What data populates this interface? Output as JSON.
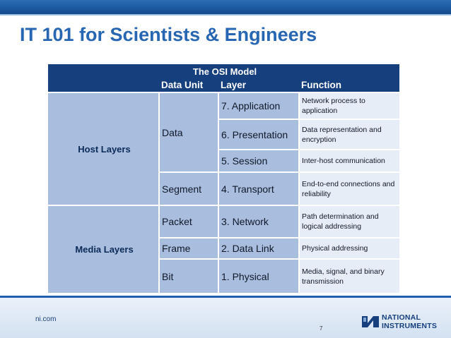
{
  "slide": {
    "title": "IT 101 for Scientists & Engineers",
    "footer_site": "ni.com",
    "page_number": "7",
    "logo_line1": "NATIONAL",
    "logo_line2": "INSTRUMENTS",
    "colors": {
      "title": "#2766b3",
      "header": "#163f7e",
      "cell": "#a9bedf",
      "func_cell": "#e7edf7"
    }
  },
  "table": {
    "title": "The OSI Model",
    "headers": {
      "unit": "Data Unit",
      "layer": "Layer",
      "function": "Function"
    },
    "groups": {
      "host": "Host Layers",
      "media": "Media Layers"
    },
    "units": {
      "data": "Data",
      "segment": "Segment",
      "packet": "Packet",
      "frame": "Frame",
      "bit": "Bit"
    },
    "rows": [
      {
        "layer": "7. Application",
        "function": "Network process to application"
      },
      {
        "layer": "6. Presentation",
        "function": "Data representation and encryption"
      },
      {
        "layer": "5. Session",
        "function": "Inter-host communication"
      },
      {
        "layer": "4. Transport",
        "function": "End-to-end connections and reliability"
      },
      {
        "layer": "3. Network",
        "function": "Path determination and logical addressing"
      },
      {
        "layer": "2. Data Link",
        "function": "Physical addressing"
      },
      {
        "layer": "1. Physical",
        "function": "Media, signal, and binary transmission"
      }
    ]
  }
}
